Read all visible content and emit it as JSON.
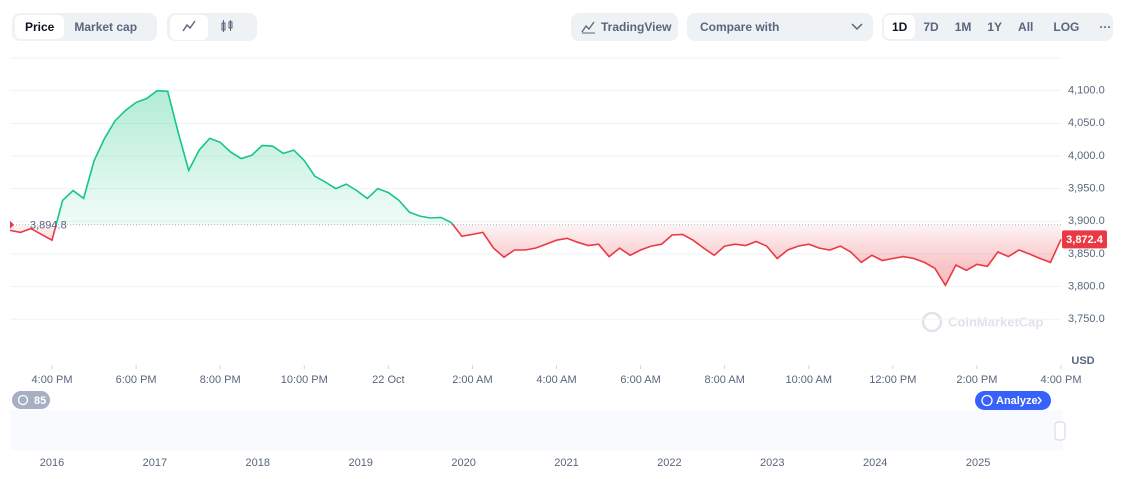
{
  "toolbar": {
    "tabs": [
      "Price",
      "Market cap"
    ],
    "tradingview": "TradingView",
    "compare": "Compare with",
    "ranges": [
      "1D",
      "7D",
      "1M",
      "1Y",
      "All",
      "LOG"
    ],
    "more": "···"
  },
  "chart_data": {
    "type": "line",
    "x": [
      15,
      15.25,
      15.5,
      15.75,
      16,
      16.25,
      16.5,
      16.75,
      17,
      17.25,
      17.5,
      17.75,
      18,
      18.25,
      18.5,
      18.75,
      19,
      19.25,
      19.5,
      19.75,
      20,
      20.25,
      20.5,
      20.75,
      21,
      21.25,
      21.5,
      21.75,
      22,
      22.25,
      22.5,
      22.75,
      23,
      23.25,
      23.5,
      23.75,
      24,
      24.25,
      24.5,
      24.75,
      25,
      25.25,
      25.5,
      25.75,
      26,
      26.25,
      26.5,
      26.75,
      27,
      27.25,
      27.5,
      27.75,
      28,
      28.25,
      28.5,
      28.75,
      29,
      29.25,
      29.5,
      29.75,
      30,
      30.25,
      30.5,
      30.75,
      31,
      31.25,
      31.5,
      31.75,
      32,
      32.25,
      32.5,
      32.75,
      33,
      33.25,
      33.5,
      33.75,
      34,
      34.25,
      34.5,
      34.75,
      35,
      35.25,
      35.5,
      35.75,
      36,
      36.25,
      36.5,
      36.75,
      37,
      37.25,
      37.5,
      37.75,
      38,
      38.25,
      38.5,
      38.75,
      39,
      39.25,
      39.5,
      39.75,
      40
    ],
    "values": [
      3886,
      3883,
      3889,
      3880,
      3871,
      3932,
      3947,
      3935,
      3993,
      4027,
      4054,
      4070,
      4082,
      4088,
      4100,
      4099,
      4036,
      3978,
      4009,
      4027,
      4021,
      4006,
      3996,
      4001,
      4016,
      4015,
      4004,
      4009,
      3993,
      3969,
      3960,
      3950,
      3957,
      3947,
      3935,
      3950,
      3944,
      3932,
      3914,
      3908,
      3905,
      3906,
      3898,
      3877,
      3880,
      3883,
      3859,
      3845,
      3856,
      3856,
      3859,
      3865,
      3871,
      3874,
      3868,
      3863,
      3865,
      3846,
      3859,
      3848,
      3856,
      3862,
      3865,
      3879,
      3880,
      3871,
      3859,
      3848,
      3862,
      3865,
      3863,
      3869,
      3862,
      3843,
      3856,
      3862,
      3865,
      3859,
      3856,
      3862,
      3853,
      3837,
      3848,
      3840,
      3843,
      3846,
      3843,
      3837,
      3828,
      3802,
      3833,
      3825,
      3834,
      3831,
      3853,
      3846,
      3856,
      3850,
      3843,
      3837,
      3872.4
    ],
    "color_up": "#16c784",
    "color_down": "#ea3943",
    "xlim": [
      15,
      40
    ],
    "ylim": [
      3680,
      4150
    ],
    "xticks": [
      {
        "value": 16,
        "label": "4:00 PM"
      },
      {
        "value": 18,
        "label": "6:00 PM"
      },
      {
        "value": 20,
        "label": "8:00 PM"
      },
      {
        "value": 22,
        "label": "10:00 PM"
      },
      {
        "value": 24,
        "label": "22 Oct"
      },
      {
        "value": 26,
        "label": "2:00 AM"
      },
      {
        "value": 28,
        "label": "4:00 AM"
      },
      {
        "value": 30,
        "label": "6:00 AM"
      },
      {
        "value": 32,
        "label": "8:00 AM"
      },
      {
        "value": 34,
        "label": "10:00 AM"
      },
      {
        "value": 36,
        "label": "12:00 PM"
      },
      {
        "value": 38,
        "label": "2:00 PM"
      },
      {
        "value": 40,
        "label": "4:00 PM"
      }
    ],
    "yticks": [
      {
        "value": 3750,
        "label": "3,750.0"
      },
      {
        "value": 3800,
        "label": "3,800.0"
      },
      {
        "value": 3850,
        "label": "3,850.0"
      },
      {
        "value": 3900,
        "label": "3,900.0"
      },
      {
        "value": 3950,
        "label": "3,950.0"
      },
      {
        "value": 4000,
        "label": "4,000.0"
      },
      {
        "value": 4050,
        "label": "4,050.0"
      },
      {
        "value": 4100,
        "label": "4,100.0"
      }
    ],
    "grid": true,
    "y_unit": "USD",
    "reference": {
      "value": 3894.8,
      "label": "3,894.8"
    },
    "last": {
      "value": 3872.4,
      "label": "3,872.4"
    },
    "watermark": "CoinMarketCap"
  },
  "badge": "85",
  "analyze": "Analyze",
  "navigator": {
    "years": [
      "2016",
      "2017",
      "2018",
      "2019",
      "2020",
      "2021",
      "2022",
      "2023",
      "2024",
      "2025"
    ]
  }
}
